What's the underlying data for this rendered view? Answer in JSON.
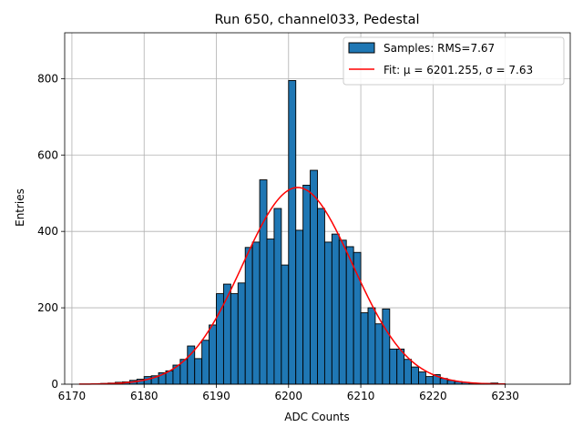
{
  "chart_data": {
    "type": "bar",
    "title": "Run 650, channel033, Pedestal",
    "xlabel": "ADC Counts",
    "ylabel": "Entries",
    "xlim": [
      6169,
      6239
    ],
    "ylim": [
      0,
      920
    ],
    "xticks": [
      6170,
      6180,
      6190,
      6200,
      6210,
      6220,
      6230
    ],
    "yticks": [
      0,
      200,
      400,
      600,
      800
    ],
    "grid": true,
    "legend_position": "top-right",
    "colors": {
      "bar_fill": "#1f77b4",
      "bar_edge": "#000000",
      "fit_line": "#ff0000",
      "grid": "#b0b0b0"
    },
    "bin_width": 1,
    "series": [
      {
        "name": "Samples: RMS=7.67",
        "type": "histogram",
        "bin_starts": [
          6173,
          6174,
          6175,
          6176,
          6177,
          6178,
          6179,
          6180,
          6181,
          6182,
          6183,
          6184,
          6185,
          6186,
          6187,
          6188,
          6189,
          6190,
          6191,
          6192,
          6193,
          6194,
          6195,
          6196,
          6197,
          6198,
          6199,
          6200,
          6201,
          6202,
          6203,
          6204,
          6205,
          6206,
          6207,
          6208,
          6209,
          6210,
          6211,
          6212,
          6213,
          6214,
          6215,
          6216,
          6217,
          6218,
          6219,
          6220,
          6221,
          6222,
          6223,
          6224,
          6225,
          6226,
          6227,
          6228,
          6229
        ],
        "values": [
          1,
          2,
          3,
          5,
          6,
          10,
          13,
          20,
          22,
          30,
          35,
          50,
          65,
          100,
          67,
          115,
          155,
          237,
          262,
          237,
          265,
          358,
          372,
          535,
          380,
          460,
          312,
          795,
          403,
          521,
          560,
          460,
          372,
          393,
          377,
          360,
          345,
          187,
          200,
          158,
          197,
          92,
          92,
          65,
          45,
          32,
          20,
          25,
          15,
          10,
          7,
          5,
          3,
          2,
          2,
          3,
          1
        ]
      },
      {
        "name": "Fit: μ = 6201.255, σ = 7.63",
        "type": "gaussian",
        "mu": 6201.255,
        "sigma": 7.63,
        "amplitude": 515,
        "x_range": [
          6171,
          6230
        ]
      }
    ]
  }
}
